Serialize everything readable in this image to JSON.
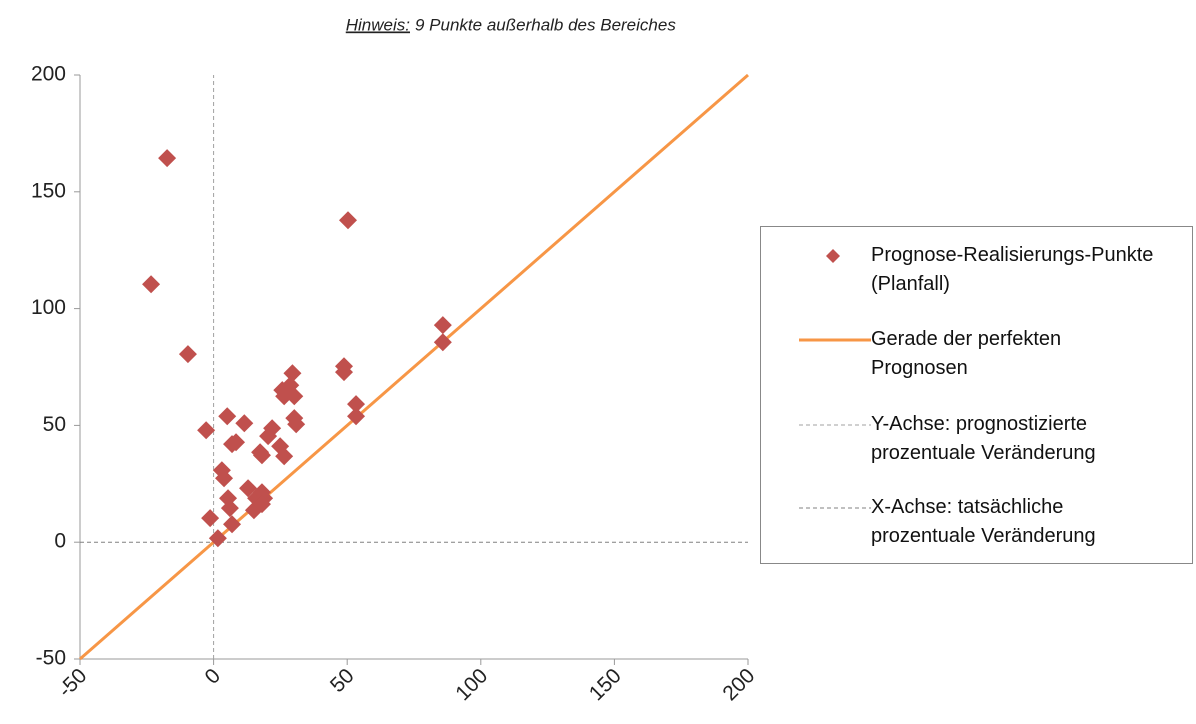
{
  "chart_data": {
    "type": "scatter",
    "note_label": "Hinweis:",
    "note": "9 Punkte außerhalb des Bereiches",
    "xlim": [
      -50,
      200
    ],
    "ylim": [
      -50,
      200
    ],
    "xticks": [
      -50,
      0,
      50,
      100,
      150,
      200
    ],
    "yticks": [
      -50,
      0,
      50,
      100,
      150,
      200
    ],
    "series": [
      {
        "name": "Prognose-Realisierungs-Punkte (Planfall)",
        "type": "scatter",
        "color": "#c0504d",
        "x": [
          -17.4,
          -23.4,
          -9.6,
          50.3,
          85.8,
          85.8,
          48.8,
          48.8,
          53.3,
          53.3,
          -2.8,
          5.1,
          11.5,
          8.4,
          6.9,
          21.9,
          20.4,
          17.4,
          18.1,
          24.9,
          26.4,
          25.7,
          28.7,
          29.5,
          26.4,
          30.2,
          30.2,
          30.9,
          3.1,
          3.9,
          5.4,
          6.1,
          6.9,
          -1.3,
          1.6,
          12.9,
          15.9,
          15.1,
          18.1,
          18.9,
          18.1
        ],
        "values": [
          164.4,
          110.4,
          80.5,
          137.8,
          92.9,
          85.6,
          75.3,
          72.8,
          59.1,
          53.9,
          47.9,
          53.9,
          50.9,
          42.8,
          42.0,
          48.8,
          45.4,
          38.5,
          37.2,
          41.1,
          36.8,
          65.1,
          67.2,
          72.3,
          62.5,
          62.5,
          53.1,
          50.5,
          30.8,
          27.4,
          18.8,
          14.6,
          7.7,
          10.3,
          1.7,
          23.1,
          18.8,
          13.7,
          21.4,
          18.8,
          16.3
        ]
      },
      {
        "name": "Gerade der perfekten Prognosen",
        "type": "line",
        "color": "#f79646",
        "x": [
          -50,
          200
        ],
        "values": [
          -50,
          200
        ]
      },
      {
        "name": "Y-Achse: prognostizierte prozentuale Veränderung",
        "type": "line",
        "color": "#a0a0a0",
        "dashed": true,
        "x": [
          0,
          0
        ],
        "values": [
          -50,
          200
        ]
      },
      {
        "name": "X-Achse: tatsächliche prozentuale Veränderung",
        "type": "line",
        "color": "#808080",
        "dashed": true,
        "x": [
          -50,
          200
        ],
        "values": [
          0,
          0
        ]
      }
    ]
  }
}
